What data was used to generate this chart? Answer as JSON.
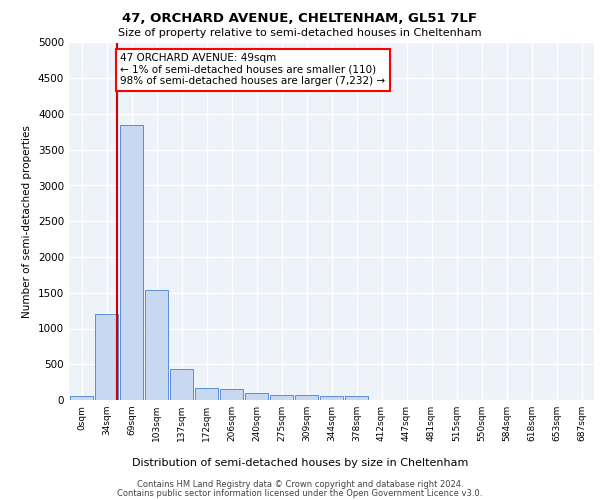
{
  "title1": "47, ORCHARD AVENUE, CHELTENHAM, GL51 7LF",
  "title2": "Size of property relative to semi-detached houses in Cheltenham",
  "xlabel": "Distribution of semi-detached houses by size in Cheltenham",
  "ylabel": "Number of semi-detached properties",
  "bin_labels": [
    "0sqm",
    "34sqm",
    "69sqm",
    "103sqm",
    "137sqm",
    "172sqm",
    "206sqm",
    "240sqm",
    "275sqm",
    "309sqm",
    "344sqm",
    "378sqm",
    "412sqm",
    "447sqm",
    "481sqm",
    "515sqm",
    "550sqm",
    "584sqm",
    "618sqm",
    "653sqm",
    "687sqm"
  ],
  "bar_values": [
    50,
    1200,
    3840,
    1540,
    430,
    170,
    155,
    100,
    65,
    65,
    55,
    50,
    0,
    0,
    0,
    0,
    0,
    0,
    0,
    0,
    0
  ],
  "bar_color": "#c8d8f0",
  "bar_edge_color": "#5b8dd9",
  "property_line_x": 1.4,
  "property_sqm": 49,
  "pct_smaller": 1,
  "n_smaller": 110,
  "pct_larger": 98,
  "n_larger": 7232,
  "annotation_text": "47 ORCHARD AVENUE: 49sqm\n← 1% of semi-detached houses are smaller (110)\n98% of semi-detached houses are larger (7,232) →",
  "annotation_box_color": "white",
  "annotation_box_edge": "red",
  "red_line_color": "#cc0000",
  "ylim": [
    0,
    5000
  ],
  "yticks": [
    0,
    500,
    1000,
    1500,
    2000,
    2500,
    3000,
    3500,
    4000,
    4500,
    5000
  ],
  "bg_color": "#eef2f9",
  "grid_color": "white",
  "footer1": "Contains HM Land Registry data © Crown copyright and database right 2024.",
  "footer2": "Contains public sector information licensed under the Open Government Licence v3.0."
}
